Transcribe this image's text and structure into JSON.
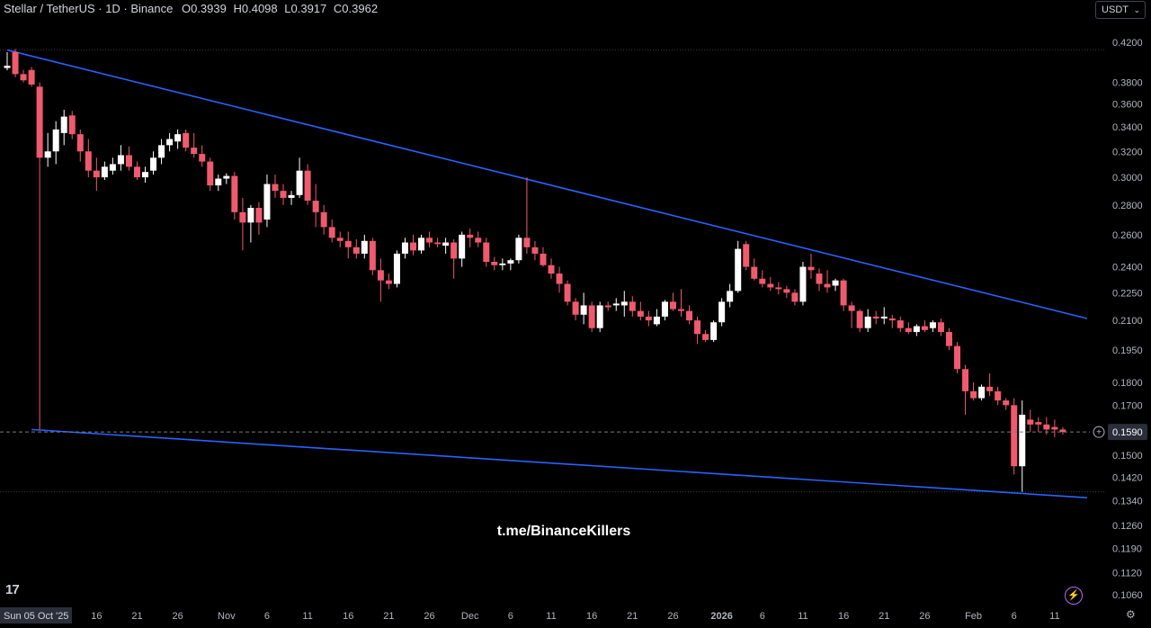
{
  "header": {
    "symbol": "Stellar / TetherUS · 1D · Binance",
    "open_label": "O",
    "open": "0.3939",
    "high_label": "H",
    "high": "0.4098",
    "low_label": "L",
    "low": "0.3917",
    "close_label": "C",
    "close": "0.3962"
  },
  "currency_button": {
    "label": "USDT",
    "icon": "chevron-down-icon"
  },
  "watermark": "t.me/BinanceKillers",
  "tv_logo": "17",
  "colors": {
    "up": "#ffffff",
    "down": "#f05a6e",
    "trendline": "#2962ff",
    "background": "#000000"
  },
  "chart_data": {
    "type": "candlestick",
    "scale": "log",
    "ylim": [
      0.106,
      0.42
    ],
    "y_ticks": [
      "0.4200",
      "0.3800",
      "0.3600",
      "0.3400",
      "0.3200",
      "0.3000",
      "0.2800",
      "0.2600",
      "0.2400",
      "0.2250",
      "0.2100",
      "0.1950",
      "0.1800",
      "0.1700",
      "0.1500",
      "0.1420",
      "0.1340",
      "0.1260",
      "0.1190",
      "0.1120",
      "0.1060"
    ],
    "x_labels": [
      {
        "label": "Sun 05 Oct '25",
        "day": 0
      },
      {
        "label": "16",
        "day": 11
      },
      {
        "label": "21",
        "day": 16
      },
      {
        "label": "26",
        "day": 21
      },
      {
        "label": "Nov",
        "day": 27
      },
      {
        "label": "6",
        "day": 32
      },
      {
        "label": "11",
        "day": 37
      },
      {
        "label": "16",
        "day": 42
      },
      {
        "label": "21",
        "day": 47
      },
      {
        "label": "26",
        "day": 52
      },
      {
        "label": "Dec",
        "day": 57
      },
      {
        "label": "6",
        "day": 62
      },
      {
        "label": "11",
        "day": 67
      },
      {
        "label": "16",
        "day": 72
      },
      {
        "label": "21",
        "day": 77
      },
      {
        "label": "26",
        "day": 82
      },
      {
        "label": "2026",
        "day": 88
      },
      {
        "label": "6",
        "day": 93
      },
      {
        "label": "11",
        "day": 98
      },
      {
        "label": "16",
        "day": 103
      },
      {
        "label": "21",
        "day": 108
      },
      {
        "label": "26",
        "day": 113
      },
      {
        "label": "Feb",
        "day": 119
      },
      {
        "label": "6",
        "day": 124
      },
      {
        "label": "11",
        "day": 129
      }
    ],
    "last_price": "0.1590",
    "reference_levels": [
      0.412,
      0.137
    ],
    "trendlines": [
      {
        "name": "upper",
        "start": [
          0,
          0.412
        ],
        "end": [
          133,
          0.211
        ]
      },
      {
        "name": "lower",
        "start": [
          3,
          0.16
        ],
        "end": [
          133,
          0.135
        ]
      }
    ],
    "candles": [
      [
        0.3939,
        0.4098,
        0.3917,
        0.3962
      ],
      [
        0.41,
        0.413,
        0.385,
        0.388
      ],
      [
        0.388,
        0.392,
        0.38,
        0.382
      ],
      [
        0.392,
        0.395,
        0.376,
        0.378
      ],
      [
        0.376,
        0.38,
        0.16,
        0.315
      ],
      [
        0.315,
        0.335,
        0.308,
        0.32
      ],
      [
        0.32,
        0.345,
        0.31,
        0.338
      ],
      [
        0.335,
        0.355,
        0.325,
        0.349
      ],
      [
        0.35,
        0.354,
        0.33,
        0.334
      ],
      [
        0.334,
        0.338,
        0.312,
        0.32
      ],
      [
        0.32,
        0.33,
        0.3,
        0.305
      ],
      [
        0.305,
        0.315,
        0.29,
        0.3
      ],
      [
        0.3,
        0.312,
        0.298,
        0.308
      ],
      [
        0.305,
        0.315,
        0.302,
        0.31
      ],
      [
        0.31,
        0.325,
        0.305,
        0.317
      ],
      [
        0.317,
        0.324,
        0.305,
        0.308
      ],
      [
        0.308,
        0.312,
        0.298,
        0.3
      ],
      [
        0.3,
        0.308,
        0.296,
        0.304
      ],
      [
        0.305,
        0.32,
        0.302,
        0.315
      ],
      [
        0.315,
        0.33,
        0.31,
        0.325
      ],
      [
        0.325,
        0.335,
        0.32,
        0.33
      ],
      [
        0.328,
        0.338,
        0.322,
        0.334
      ],
      [
        0.335,
        0.338,
        0.32,
        0.323
      ],
      [
        0.323,
        0.335,
        0.315,
        0.318
      ],
      [
        0.318,
        0.325,
        0.308,
        0.312
      ],
      [
        0.312,
        0.315,
        0.29,
        0.294
      ],
      [
        0.294,
        0.302,
        0.29,
        0.299
      ],
      [
        0.299,
        0.303,
        0.295,
        0.301
      ],
      [
        0.301,
        0.304,
        0.27,
        0.275
      ],
      [
        0.275,
        0.285,
        0.25,
        0.268
      ],
      [
        0.268,
        0.28,
        0.255,
        0.278
      ],
      [
        0.278,
        0.282,
        0.26,
        0.268
      ],
      [
        0.27,
        0.302,
        0.265,
        0.295
      ],
      [
        0.295,
        0.302,
        0.285,
        0.29
      ],
      [
        0.29,
        0.295,
        0.28,
        0.285
      ],
      [
        0.285,
        0.29,
        0.28,
        0.287
      ],
      [
        0.287,
        0.315,
        0.285,
        0.305
      ],
      [
        0.305,
        0.31,
        0.28,
        0.283
      ],
      [
        0.283,
        0.295,
        0.265,
        0.275
      ],
      [
        0.275,
        0.28,
        0.26,
        0.265
      ],
      [
        0.265,
        0.27,
        0.255,
        0.258
      ],
      [
        0.258,
        0.262,
        0.252,
        0.256
      ],
      [
        0.256,
        0.262,
        0.245,
        0.252
      ],
      [
        0.252,
        0.257,
        0.245,
        0.248
      ],
      [
        0.248,
        0.26,
        0.245,
        0.256
      ],
      [
        0.256,
        0.258,
        0.235,
        0.238
      ],
      [
        0.238,
        0.245,
        0.22,
        0.232
      ],
      [
        0.232,
        0.236,
        0.227,
        0.23
      ],
      [
        0.23,
        0.25,
        0.228,
        0.248
      ],
      [
        0.248,
        0.258,
        0.245,
        0.255
      ],
      [
        0.255,
        0.26,
        0.247,
        0.25
      ],
      [
        0.25,
        0.26,
        0.248,
        0.258
      ],
      [
        0.258,
        0.262,
        0.252,
        0.255
      ],
      [
        0.255,
        0.258,
        0.252,
        0.254
      ],
      [
        0.253,
        0.258,
        0.248,
        0.255
      ],
      [
        0.255,
        0.257,
        0.233,
        0.245
      ],
      [
        0.245,
        0.262,
        0.24,
        0.26
      ],
      [
        0.26,
        0.264,
        0.252,
        0.258
      ],
      [
        0.258,
        0.262,
        0.252,
        0.255
      ],
      [
        0.255,
        0.258,
        0.24,
        0.243
      ],
      [
        0.243,
        0.246,
        0.238,
        0.241
      ],
      [
        0.241,
        0.245,
        0.238,
        0.242
      ],
      [
        0.242,
        0.245,
        0.238,
        0.244
      ],
      [
        0.244,
        0.26,
        0.242,
        0.258
      ],
      [
        0.258,
        0.3,
        0.248,
        0.252
      ],
      [
        0.252,
        0.256,
        0.244,
        0.248
      ],
      [
        0.248,
        0.252,
        0.24,
        0.241
      ],
      [
        0.241,
        0.245,
        0.233,
        0.236
      ],
      [
        0.236,
        0.24,
        0.225,
        0.23
      ],
      [
        0.23,
        0.232,
        0.218,
        0.22
      ],
      [
        0.22,
        0.222,
        0.21,
        0.213
      ],
      [
        0.213,
        0.225,
        0.208,
        0.218
      ],
      [
        0.218,
        0.22,
        0.204,
        0.206
      ],
      [
        0.206,
        0.22,
        0.204,
        0.218
      ],
      [
        0.218,
        0.22,
        0.215,
        0.217
      ],
      [
        0.218,
        0.222,
        0.215,
        0.219
      ],
      [
        0.218,
        0.226,
        0.212,
        0.22
      ],
      [
        0.22,
        0.223,
        0.212,
        0.215
      ],
      [
        0.215,
        0.22,
        0.21,
        0.212
      ],
      [
        0.212,
        0.215,
        0.207,
        0.21
      ],
      [
        0.208,
        0.216,
        0.207,
        0.212
      ],
      [
        0.212,
        0.221,
        0.21,
        0.22
      ],
      [
        0.22,
        0.225,
        0.215,
        0.216
      ],
      [
        0.216,
        0.227,
        0.212,
        0.215
      ],
      [
        0.215,
        0.218,
        0.208,
        0.21
      ],
      [
        0.21,
        0.212,
        0.198,
        0.203
      ],
      [
        0.203,
        0.205,
        0.199,
        0.2
      ],
      [
        0.2,
        0.21,
        0.199,
        0.209
      ],
      [
        0.209,
        0.222,
        0.207,
        0.22
      ],
      [
        0.22,
        0.23,
        0.217,
        0.226
      ],
      [
        0.226,
        0.256,
        0.225,
        0.251
      ],
      [
        0.254,
        0.256,
        0.238,
        0.24
      ],
      [
        0.24,
        0.245,
        0.232,
        0.233
      ],
      [
        0.233,
        0.238,
        0.228,
        0.23
      ],
      [
        0.23,
        0.234,
        0.226,
        0.228
      ],
      [
        0.228,
        0.231,
        0.224,
        0.227
      ],
      [
        0.227,
        0.229,
        0.222,
        0.225
      ],
      [
        0.225,
        0.227,
        0.218,
        0.22
      ],
      [
        0.22,
        0.243,
        0.218,
        0.24
      ],
      [
        0.24,
        0.248,
        0.233,
        0.238
      ],
      [
        0.236,
        0.239,
        0.226,
        0.23
      ],
      [
        0.23,
        0.238,
        0.225,
        0.228
      ],
      [
        0.229,
        0.233,
        0.226,
        0.232
      ],
      [
        0.232,
        0.233,
        0.215,
        0.218
      ],
      [
        0.218,
        0.22,
        0.206,
        0.215
      ],
      [
        0.215,
        0.216,
        0.204,
        0.206
      ],
      [
        0.206,
        0.216,
        0.204,
        0.212
      ],
      [
        0.212,
        0.215,
        0.208,
        0.211
      ],
      [
        0.211,
        0.217,
        0.208,
        0.212
      ],
      [
        0.211,
        0.213,
        0.206,
        0.21
      ],
      [
        0.21,
        0.212,
        0.204,
        0.206
      ],
      [
        0.206,
        0.209,
        0.203,
        0.204
      ],
      [
        0.204,
        0.208,
        0.202,
        0.207
      ],
      [
        0.207,
        0.21,
        0.204,
        0.205
      ],
      [
        0.206,
        0.21,
        0.204,
        0.209
      ],
      [
        0.209,
        0.211,
        0.202,
        0.204
      ],
      [
        0.204,
        0.206,
        0.195,
        0.197
      ],
      [
        0.197,
        0.199,
        0.184,
        0.186
      ],
      [
        0.186,
        0.188,
        0.166,
        0.176
      ],
      [
        0.176,
        0.18,
        0.172,
        0.173
      ],
      [
        0.173,
        0.179,
        0.172,
        0.178
      ],
      [
        0.178,
        0.184,
        0.174,
        0.176
      ],
      [
        0.176,
        0.178,
        0.17,
        0.172
      ],
      [
        0.172,
        0.173,
        0.168,
        0.17
      ],
      [
        0.17,
        0.173,
        0.143,
        0.146
      ],
      [
        0.146,
        0.172,
        0.137,
        0.166
      ],
      [
        0.164,
        0.168,
        0.159,
        0.162
      ],
      [
        0.163,
        0.165,
        0.159,
        0.162
      ],
      [
        0.162,
        0.165,
        0.158,
        0.16
      ],
      [
        0.161,
        0.164,
        0.157,
        0.16
      ],
      [
        0.16,
        0.161,
        0.158,
        0.159
      ]
    ]
  }
}
